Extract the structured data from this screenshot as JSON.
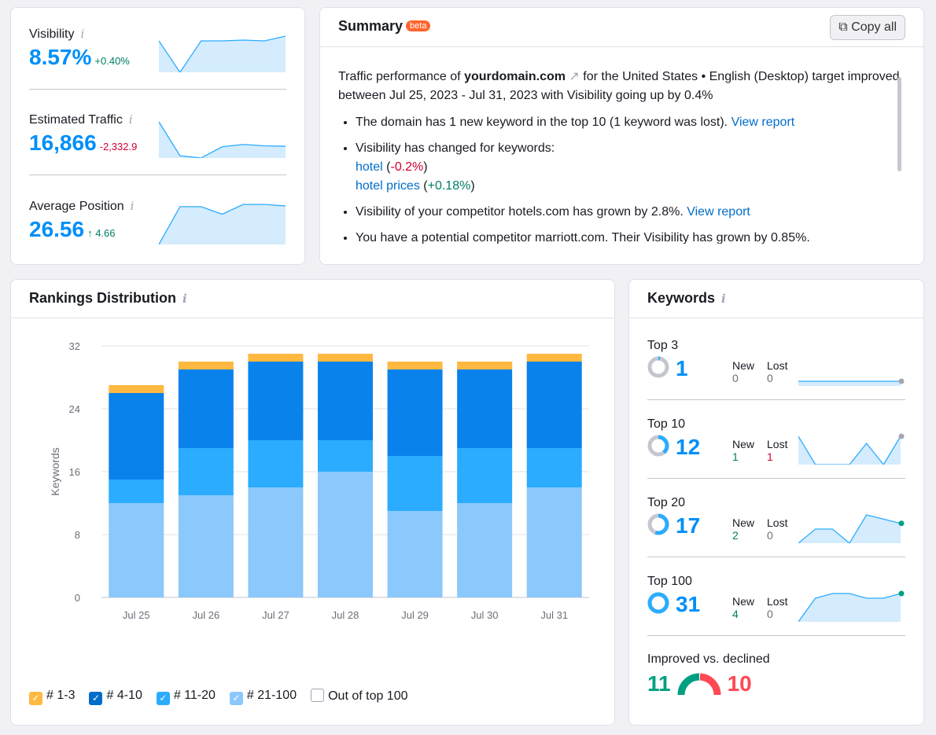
{
  "metrics": [
    {
      "label": "Visibility",
      "value": "8.57%",
      "delta": "+0.40%",
      "trend": "up",
      "spark": [
        5,
        1,
        5,
        5,
        5.1,
        5,
        5.6
      ]
    },
    {
      "label": "Estimated Traffic",
      "value": "16,866",
      "delta": "-2,332.9",
      "trend": "down",
      "spark": [
        9,
        1.5,
        1,
        3.5,
        4,
        3.7,
        3.6
      ]
    },
    {
      "label": "Average Position",
      "value": "26.56",
      "delta": "↑ 4.66",
      "trend": "up",
      "spark": [
        1,
        6,
        6,
        5,
        6.3,
        6.3,
        6.1
      ]
    }
  ],
  "summary": {
    "title": "Summary",
    "badge": "beta",
    "copy_label": "Copy all",
    "intro_pre": "Traffic performance of ",
    "domain": "yourdomain.com",
    "intro_post": " for the United States • English (Desktop) target improved between Jul 25, 2023 - Jul 31, 2023 with Visibility going up by 0.4%",
    "b1": "The domain has 1 new keyword in the top 10 (1 keyword was lost). ",
    "view_report": "View report",
    "b2": "Visibility has changed for keywords:",
    "kw1": "hotel",
    "kw1_delta": "-0.2%",
    "kw2": "hotel prices",
    "kw2_delta": "+0.18%",
    "b3": "Visibility of your competitor hotels.com has grown by 2.8%. ",
    "b4": "You have a potential competitor marriott.com. Their Visibility has grown by 0.85%."
  },
  "rankings": {
    "title": "Rankings Distribution"
  },
  "chart_data": {
    "type": "bar",
    "stacked": true,
    "ylabel": "Keywords",
    "ylim": [
      0,
      32
    ],
    "yticks": [
      0,
      8,
      16,
      24,
      32
    ],
    "grid": true,
    "categories": [
      "Jul 25",
      "Jul 26",
      "Jul 27",
      "Jul 28",
      "Jul 29",
      "Jul 30",
      "Jul 31"
    ],
    "series": [
      {
        "name": "# 21-100",
        "color": "#8bc8fb",
        "values": [
          12,
          13,
          14,
          16,
          11,
          12,
          14
        ]
      },
      {
        "name": "# 11-20",
        "color": "#2bacff",
        "values": [
          3,
          6,
          6,
          4,
          7,
          7,
          5
        ]
      },
      {
        "name": "# 4-10",
        "color": "#0a82ec",
        "values": [
          11,
          10,
          10,
          10,
          11,
          10,
          11
        ]
      },
      {
        "name": "# 1-3",
        "color": "#ffb840",
        "values": [
          1,
          1,
          1,
          1,
          1,
          1,
          1
        ]
      }
    ],
    "legend": [
      {
        "name": "# 1-3",
        "color": "#ffb840",
        "checked": true
      },
      {
        "name": "# 4-10",
        "color": "#006dca",
        "checked": true
      },
      {
        "name": "# 11-20",
        "color": "#2bacff",
        "checked": true
      },
      {
        "name": "# 21-100",
        "color": "#8bc8fb",
        "checked": true
      },
      {
        "name": "Out of top 100",
        "color": "#ffffff",
        "checked": false
      }
    ],
    "legend_position": "bottom-left"
  },
  "keywords": {
    "title": "Keywords",
    "new_label": "New",
    "lost_label": "Lost",
    "rows": [
      {
        "title": "Top 3",
        "count": "1",
        "new": "0",
        "lost": "0",
        "fill": 0.03,
        "spark": [
          1,
          1,
          1,
          1,
          1,
          1,
          1
        ],
        "dot": "#a4a6b3"
      },
      {
        "title": "Top 10",
        "count": "12",
        "new": "1",
        "lost": "1",
        "fill": 0.39,
        "spark": [
          3,
          1,
          1,
          1,
          2.5,
          1,
          3
        ],
        "dot": "#a4a6b3"
      },
      {
        "title": "Top 20",
        "count": "17",
        "new": "2",
        "lost": "0",
        "fill": 0.55,
        "spark": [
          1,
          2,
          2,
          1,
          3,
          2.7,
          2.4
        ],
        "dot": "#009f81"
      },
      {
        "title": "Top 100",
        "count": "31",
        "new": "4",
        "lost": "0",
        "fill": 1,
        "spark": [
          1,
          3.5,
          4,
          4,
          3.5,
          3.5,
          4
        ],
        "dot": "#009f81"
      }
    ],
    "improved_label": "Improved vs. declined",
    "improved": "11",
    "declined": "10",
    "improved_color": "#009f81",
    "declined_color": "#ff4953"
  }
}
